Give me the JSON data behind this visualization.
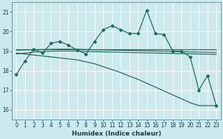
{
  "xlabel": "Humidex (Indice chaleur)",
  "x_values": [
    0,
    1,
    2,
    3,
    4,
    5,
    6,
    7,
    8,
    9,
    10,
    11,
    12,
    13,
    14,
    15,
    16,
    17,
    18,
    19,
    20,
    21,
    22,
    23
  ],
  "main_line_y": [
    17.8,
    18.5,
    19.1,
    18.9,
    19.4,
    19.5,
    19.3,
    19.05,
    18.85,
    19.5,
    20.1,
    20.3,
    20.1,
    19.9,
    19.9,
    21.1,
    19.9,
    19.85,
    19.0,
    19.0,
    18.7,
    17.0,
    17.75,
    16.2
  ],
  "trend1_y": [
    19.1,
    19.1,
    19.1,
    19.1,
    19.1,
    19.1,
    19.1,
    19.1,
    19.1,
    19.1,
    19.1,
    19.1,
    19.1,
    19.1,
    19.1,
    19.1,
    19.1,
    19.1,
    19.1,
    19.1,
    19.1,
    19.1,
    19.1,
    19.1
  ],
  "trend2_y": [
    19.05,
    19.06,
    19.07,
    19.08,
    19.09,
    19.1,
    19.1,
    19.09,
    19.08,
    19.07,
    19.06,
    19.05,
    19.04,
    19.03,
    19.02,
    19.01,
    19.0,
    18.99,
    18.98,
    18.97,
    18.96,
    18.95,
    18.94,
    18.93
  ],
  "trend3_y": [
    18.85,
    18.9,
    18.95,
    18.97,
    18.99,
    19.0,
    19.0,
    18.99,
    18.98,
    18.97,
    18.96,
    18.95,
    18.94,
    18.93,
    18.92,
    18.91,
    18.9,
    18.89,
    18.88,
    18.87,
    18.86,
    18.85,
    18.84,
    18.83
  ],
  "diagonal_y": [
    18.9,
    18.85,
    18.8,
    18.75,
    18.7,
    18.65,
    18.6,
    18.55,
    18.45,
    18.35,
    18.2,
    18.05,
    17.9,
    17.72,
    17.55,
    17.35,
    17.15,
    16.95,
    16.75,
    16.55,
    16.35,
    16.2,
    16.2,
    16.2
  ],
  "ylim": [
    15.5,
    21.5
  ],
  "yticks": [
    16,
    17,
    18,
    19,
    20,
    21
  ],
  "xlim": [
    -0.5,
    23.5
  ],
  "bg_color": "#cce9ee",
  "grid_color": "#ffffff",
  "line_color": "#1a6b5a",
  "marker": "D",
  "marker_size": 2.5,
  "line_width": 0.9,
  "xlabel_fontsize": 6.5,
  "tick_fontsize": 5.5
}
